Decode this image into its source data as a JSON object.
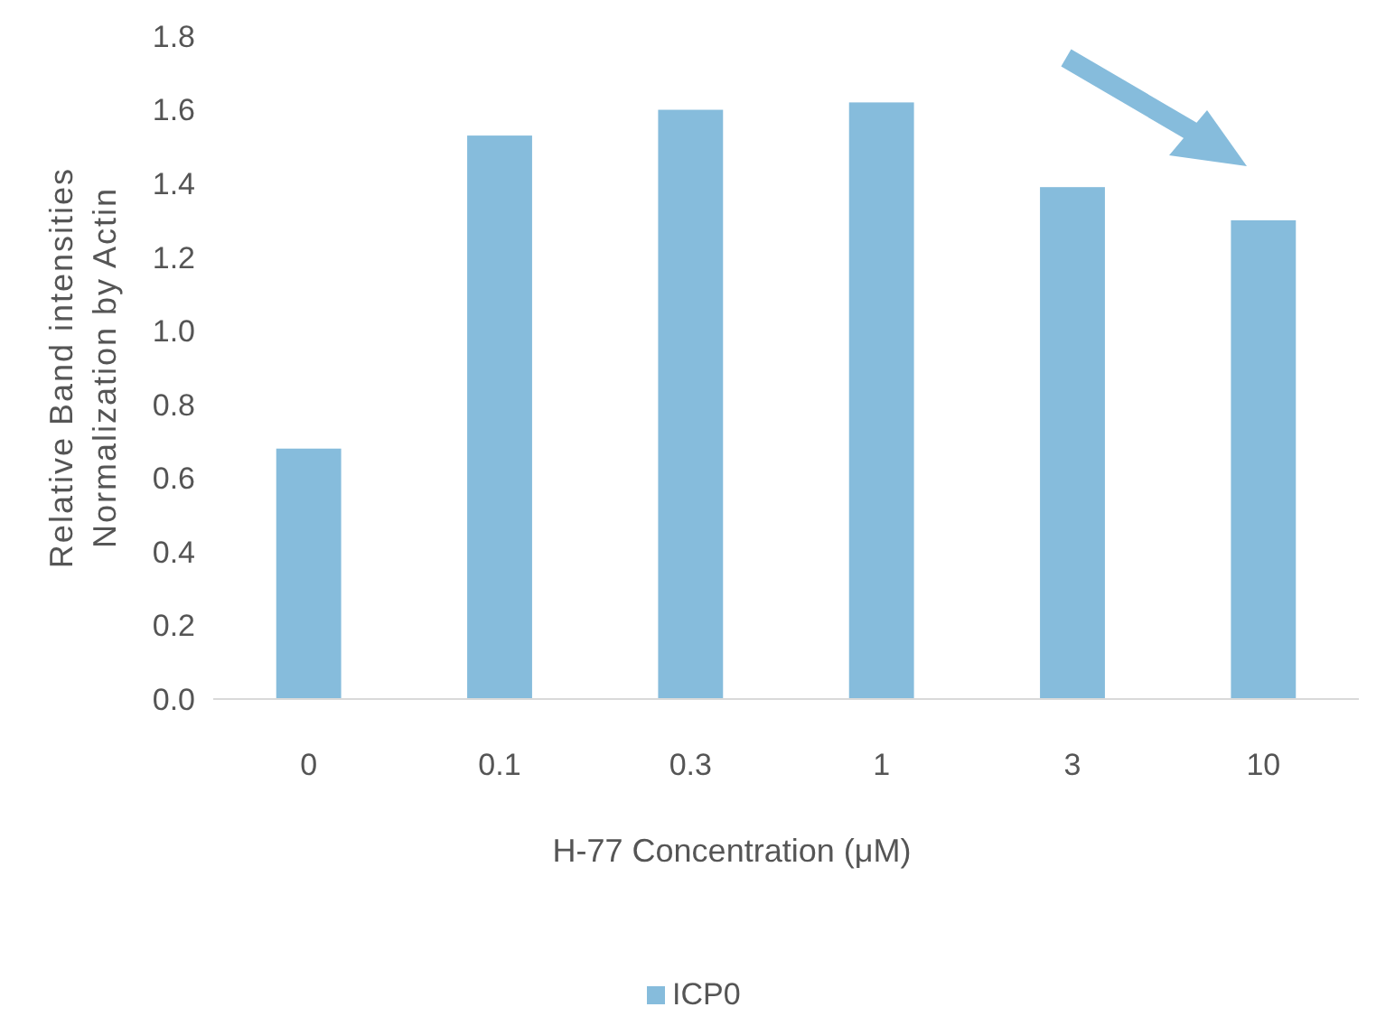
{
  "chart_data": {
    "type": "bar",
    "xlabel": "H-77 Concentration (μM)",
    "ylabel": "Relative Band intensities\nNormalization by Actin",
    "categories": [
      "0",
      "0.1",
      "0.3",
      "1",
      "3",
      "10"
    ],
    "series": [
      {
        "name": "ICP0",
        "color": "#86bcdc",
        "values": [
          0.68,
          1.53,
          1.6,
          1.62,
          1.39,
          1.3
        ]
      }
    ],
    "ylim": [
      0,
      1.8
    ],
    "yticks": [
      {
        "value": 0,
        "label": "0.0"
      },
      0.2,
      0.4,
      0.6,
      0.8,
      {
        "value": 1,
        "label": "1.0"
      },
      1.2,
      1.4,
      1.6,
      1.8
    ],
    "legend": "bottom",
    "grid": false
  }
}
